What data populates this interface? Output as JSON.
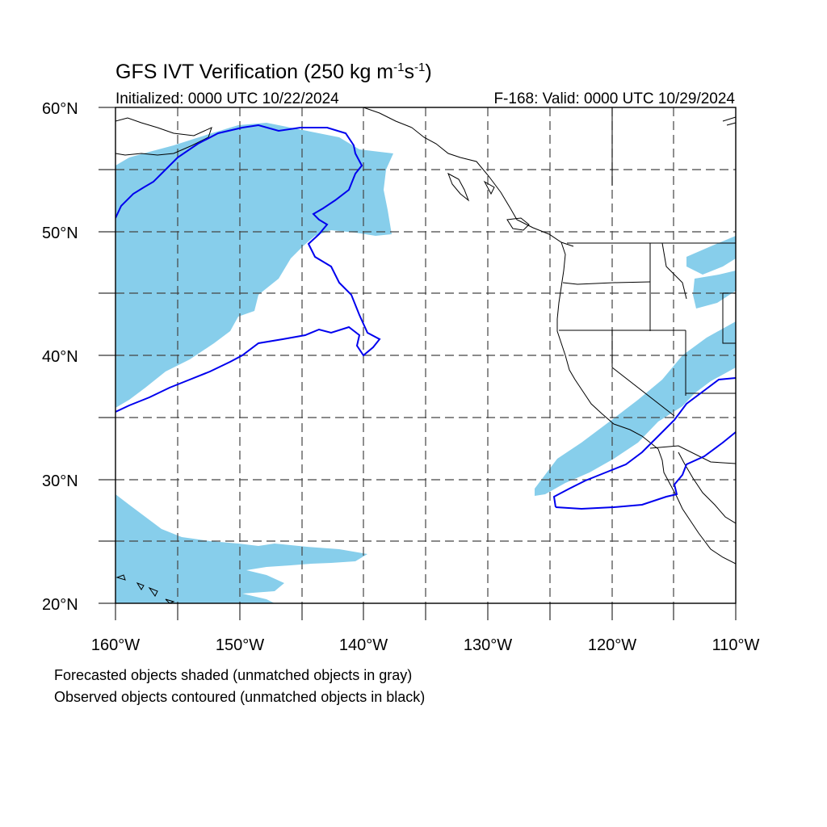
{
  "title": {
    "main": "GFS IVT Verification (250 kg m",
    "exp1": "-1",
    "mid": "s",
    "exp2": "-1",
    "close": ")",
    "initialized": "Initialized: 0000 UTC 10/22/2024",
    "valid": "F-168: Valid: 0000 UTC 10/29/2024"
  },
  "axes": {
    "lat_labels": [
      "60°N",
      "50°N",
      "40°N",
      "30°N",
      "20°N"
    ],
    "lon_labels": [
      "160°W",
      "150°W",
      "140°W",
      "130°W",
      "120°W",
      "110°W"
    ],
    "lon_range": [
      -160,
      -110
    ],
    "lat_range": [
      20,
      60
    ],
    "grid": true
  },
  "legend": {
    "line1": "Forecasted objects shaded (unmatched objects in gray)",
    "line2": "Observed objects contoured (unmatched objects in black)"
  },
  "colors": {
    "forecast_shade": "#87ceeb",
    "observed_contour": "#0000ee",
    "coastline": "#000000",
    "gridline": "#444444"
  }
}
